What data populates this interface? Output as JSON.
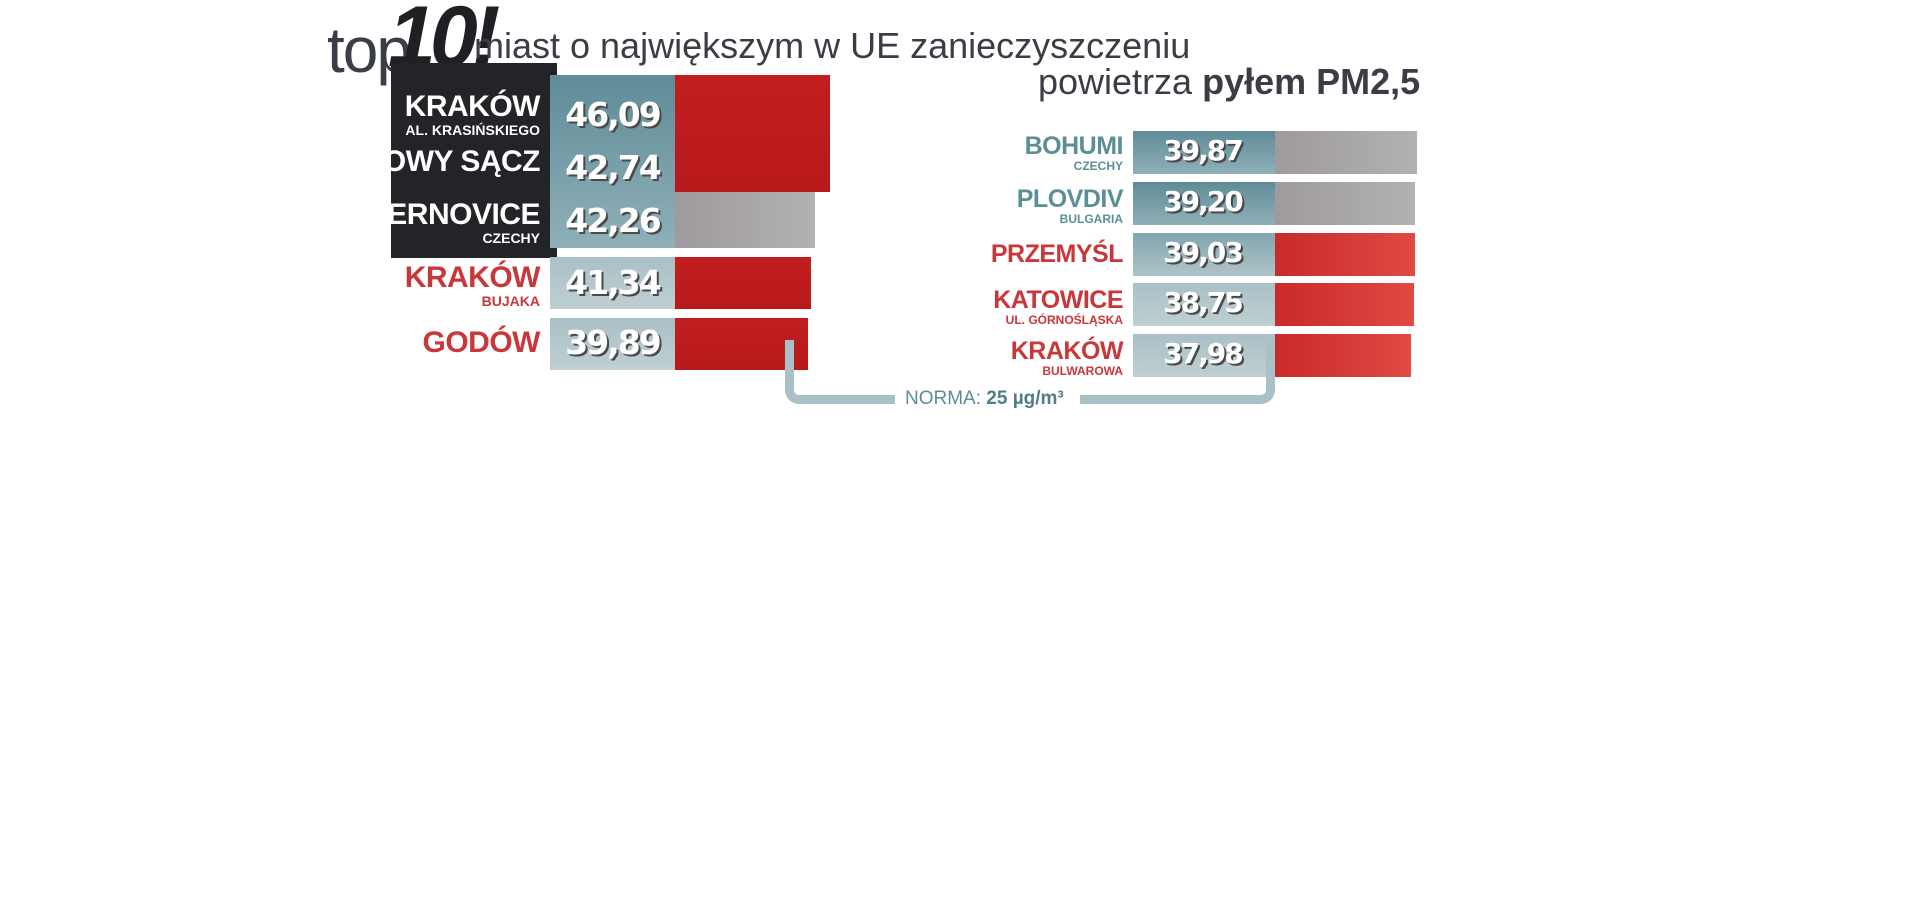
{
  "header": {
    "top_word": "top",
    "number": "10!",
    "title_line1": "miast o największym w UE zanieczyszczeniu",
    "title_line2_normal": "powietrza",
    "title_line2_bold": "pyłem PM2,5"
  },
  "norma": {
    "label": "NORMA:",
    "value": "25 µg/m³"
  },
  "colors": {
    "teal": "#5b8e97",
    "red": "#c9373a",
    "dark": "#232427",
    "grey": "#a9a8a8"
  },
  "chart_data": {
    "type": "bar",
    "title": "top 10! miast o największym w UE zanieczyszczeniu powietrza pyłem PM2,5",
    "unit": "µg/m³",
    "reference": 25,
    "categories": [
      "KRAKÓW AL. KRASIŃSKIEGO",
      "NOWY SĄCZ",
      "VERNOVICE CZECHY",
      "KRAKÓW BUJAKA",
      "GODÓW",
      "BOHUMI CZECHY",
      "PLOVDIV BULGARIA",
      "PRZEMYŚL",
      "KATOWICE UL. GÓRNOŚLĄSKA",
      "KRAKÓW BULWAROWA"
    ],
    "values": [
      46.09,
      42.74,
      42.26,
      41.34,
      39.89,
      39.87,
      39.2,
      39.03,
      38.75,
      37.98
    ],
    "rows": [
      {
        "name": "KRAKÓW",
        "sub": "AL. KRASIŃSKIEGO",
        "value": "46,09"
      },
      {
        "name": "NOWY SĄCZ",
        "sub": "",
        "value": "42,74"
      },
      {
        "name": "VERNOVICE",
        "sub": "CZECHY",
        "value": "42,26"
      },
      {
        "name": "KRAKÓW",
        "sub": "BUJAKA",
        "value": "41,34"
      },
      {
        "name": "GODÓW",
        "sub": "",
        "value": "39,89"
      },
      {
        "name": "BOHUMI",
        "sub": "CZECHY",
        "value": "39,87"
      },
      {
        "name": "PLOVDIV",
        "sub": "BULGARIA",
        "value": "39,20"
      },
      {
        "name": "PRZEMYŚL",
        "sub": "",
        "value": "39,03"
      },
      {
        "name": "KATOWICE",
        "sub": "UL. GÓRNOŚLĄSKA",
        "value": "38,75"
      },
      {
        "name": "KRAKÓW",
        "sub": "BULWAROWA",
        "value": "37,98"
      }
    ]
  }
}
